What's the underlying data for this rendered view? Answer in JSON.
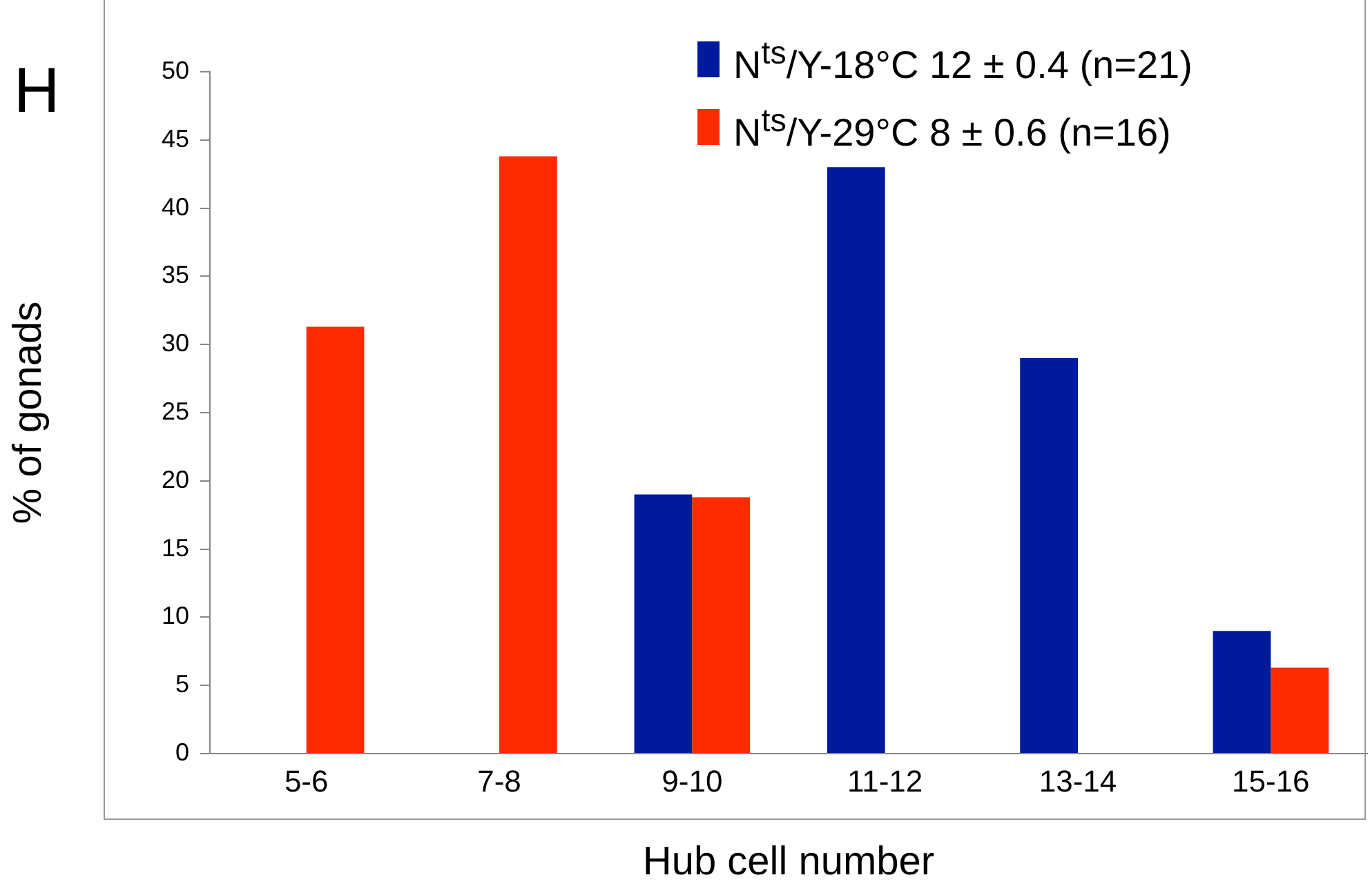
{
  "chart_data": {
    "type": "bar",
    "xlabel": "Hub cell number",
    "ylabel": "% of gonads",
    "categories": [
      "5-6",
      "7-8",
      "9-10",
      "11-12",
      "13-14",
      "15-16"
    ],
    "series": [
      {
        "name": "N$^{ts}$/Y-18°C 12 ± 0.4 (n=21)",
        "color": "#001a9c",
        "values": [
          null,
          null,
          19,
          43,
          29,
          9
        ]
      },
      {
        "name": "N$^{ts}$/Y-29°C 8 ± 0.6 (n=16)",
        "color": "#ff2a00",
        "values": [
          31.3,
          43.8,
          18.8,
          null,
          null,
          6.3
        ]
      }
    ],
    "ylim": [
      0,
      50
    ],
    "yticks": [
      0,
      5,
      10,
      15,
      20,
      25,
      30,
      35,
      40,
      45,
      50
    ],
    "grid": false,
    "legend": "top right",
    "annotations": [
      "H"
    ]
  }
}
